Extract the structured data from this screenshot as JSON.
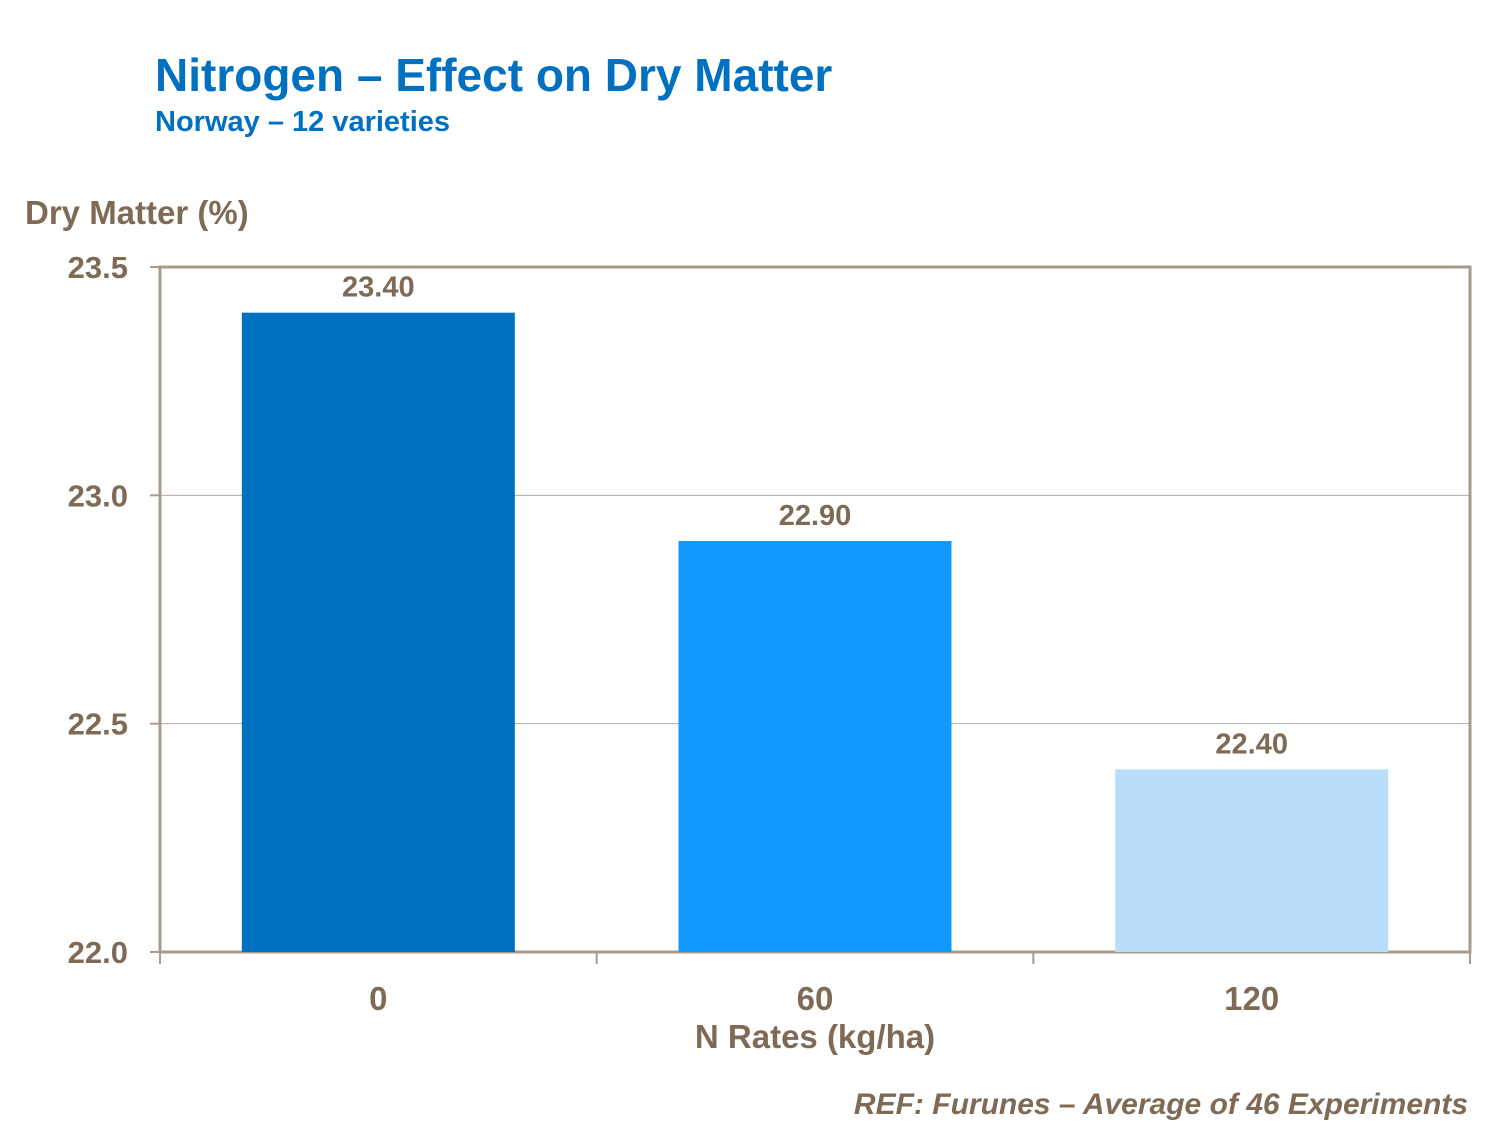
{
  "title": "Nitrogen – Effect on Dry Matter",
  "subtitle": "Norway – 12 varieties",
  "reference": "REF: Furunes – Average of 46 Experiments",
  "chart_data": {
    "type": "bar",
    "categories": [
      "0",
      "60",
      "120"
    ],
    "values": [
      23.4,
      22.9,
      22.4
    ],
    "data_labels": [
      "23.40",
      "22.90",
      "22.40"
    ],
    "bar_colors": [
      "#0070C0",
      "#1199FF",
      "#B8DEFC"
    ],
    "xlabel": "N Rates (kg/ha)",
    "ylabel": "Dry Matter (%)",
    "ylim": [
      22.0,
      23.5
    ],
    "yticks": [
      "22.0",
      "22.5",
      "23.0",
      "23.5"
    ],
    "grid": true,
    "legend": "none"
  }
}
